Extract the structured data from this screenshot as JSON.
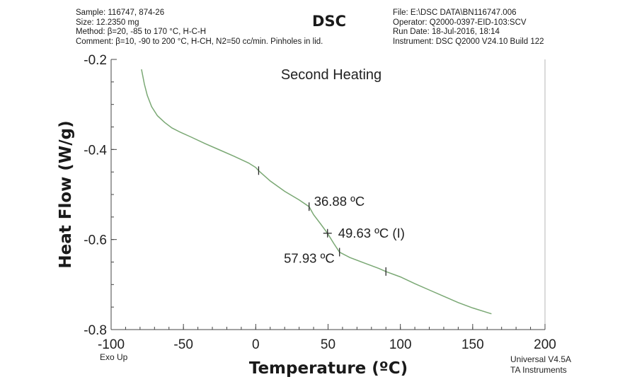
{
  "header": {
    "left": [
      "Sample: 116747, 874-26",
      "Size: 12.2350 mg",
      "Method: β=20, -85 to 170 °C, H-C-H",
      "Comment: β=10, -90 to 200 °C, H-CH, N2=50 cc/min. Pinholes in lid."
    ],
    "title": "DSC",
    "right": [
      "File: E:\\DSC DATA\\BN116747.006",
      "Operator: Q2000-0397-EID-103:SCV",
      "Run Date: 18-Jul-2016, 18:14",
      "Instrument: DSC Q2000 V24.10 Build 122"
    ]
  },
  "footer": {
    "exo_up": "Exo Up",
    "software": "Universal V4.5A",
    "vendor": "TA Instruments"
  },
  "colors": {
    "curve": "#7aa874",
    "marker": "#2a2a2a",
    "axis": "#444444"
  },
  "chart_data": {
    "type": "line",
    "title": "Second Heating",
    "xlabel": "Temperature (ºC)",
    "ylabel": "Heat Flow (W/g)",
    "xlim": [
      -100,
      200
    ],
    "ylim": [
      -0.8,
      -0.2
    ],
    "xticks": [
      -100,
      -50,
      0,
      50,
      100,
      150,
      200
    ],
    "yticks": [
      -0.2,
      -0.4,
      -0.6,
      -0.8
    ],
    "ytick_labels": [
      "-0.2",
      "-0.4",
      "-0.6",
      "-0.8"
    ],
    "series": [
      {
        "name": "Heat Flow",
        "x": [
          -79,
          -77,
          -75,
          -72,
          -68,
          -63,
          -58,
          -52,
          -45,
          -35,
          -25,
          -15,
          -5,
          0,
          2,
          10,
          20,
          30,
          36.88,
          40,
          45,
          49.63,
          54,
          57.93,
          65,
          75,
          85,
          90,
          100,
          110,
          120,
          130,
          140,
          150,
          160,
          163
        ],
        "y": [
          -0.222,
          -0.255,
          -0.28,
          -0.305,
          -0.325,
          -0.34,
          -0.352,
          -0.362,
          -0.372,
          -0.387,
          -0.401,
          -0.415,
          -0.43,
          -0.44,
          -0.447,
          -0.47,
          -0.493,
          -0.512,
          -0.527,
          -0.545,
          -0.566,
          -0.586,
          -0.609,
          -0.628,
          -0.64,
          -0.652,
          -0.664,
          -0.671,
          -0.683,
          -0.698,
          -0.712,
          -0.726,
          -0.74,
          -0.752,
          -0.762,
          -0.765
        ]
      }
    ],
    "markers": [
      {
        "x": 2,
        "y": -0.447
      },
      {
        "x": 36.88,
        "y": -0.527
      },
      {
        "x": 49.63,
        "y": -0.586
      },
      {
        "x": 57.93,
        "y": -0.628
      },
      {
        "x": 90,
        "y": -0.671
      }
    ],
    "annotations": [
      {
        "label": "36.88 ºC",
        "x": 36.88,
        "y": -0.527
      },
      {
        "label": "49.63 ºC (I)",
        "x": 49.63,
        "y": -0.586
      },
      {
        "label": "57.93 ºC",
        "x": 57.93,
        "y": -0.628
      }
    ]
  }
}
